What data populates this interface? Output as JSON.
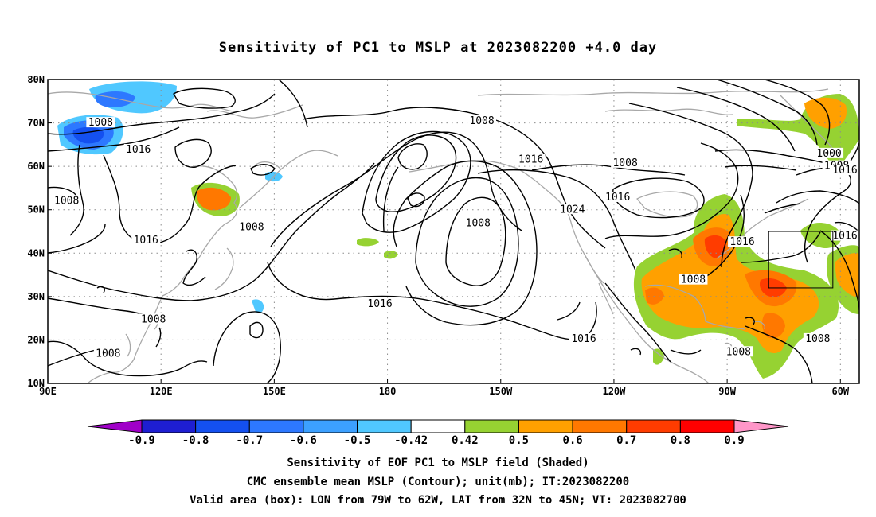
{
  "title": "Sensitivity of PC1 to MSLP at 2023082200 +4.0 day",
  "map": {
    "lon_range": [
      90,
      305
    ],
    "lat_range": [
      10,
      80
    ],
    "x_ticks": [
      {
        "lon": 90,
        "label": "90E"
      },
      {
        "lon": 120,
        "label": "120E"
      },
      {
        "lon": 150,
        "label": "150E"
      },
      {
        "lon": 180,
        "label": "180"
      },
      {
        "lon": 210,
        "label": "150W"
      },
      {
        "lon": 240,
        "label": "120W"
      },
      {
        "lon": 270,
        "label": "90W"
      },
      {
        "lon": 300,
        "label": "60W"
      }
    ],
    "y_ticks": [
      {
        "lat": 80,
        "label": "80N"
      },
      {
        "lat": 70,
        "label": "70N"
      },
      {
        "lat": 60,
        "label": "60N"
      },
      {
        "lat": 50,
        "label": "50N"
      },
      {
        "lat": 40,
        "label": "40N"
      },
      {
        "lat": 30,
        "label": "30N"
      },
      {
        "lat": 20,
        "label": "20N"
      },
      {
        "lat": 10,
        "label": "10N"
      }
    ],
    "contour_labels": [
      {
        "lon": 104,
        "lat": 69.9,
        "label": "1008"
      },
      {
        "lon": 114,
        "lat": 63.7,
        "label": "1016"
      },
      {
        "lon": 95,
        "lat": 51.9,
        "label": "1008"
      },
      {
        "lon": 116,
        "lat": 42.8,
        "label": "1016"
      },
      {
        "lon": 118,
        "lat": 24.6,
        "label": "1008"
      },
      {
        "lon": 106,
        "lat": 16.7,
        "label": "1008"
      },
      {
        "lon": 144,
        "lat": 45.8,
        "label": "1008"
      },
      {
        "lon": 178,
        "lat": 28.1,
        "label": "1016"
      },
      {
        "lon": 205,
        "lat": 70.3,
        "label": "1008"
      },
      {
        "lon": 218,
        "lat": 61.4,
        "label": "1016"
      },
      {
        "lon": 229,
        "lat": 49.9,
        "label": "1024"
      },
      {
        "lon": 204,
        "lat": 46.7,
        "label": "1008"
      },
      {
        "lon": 232,
        "lat": 20.1,
        "label": "1016"
      },
      {
        "lon": 243,
        "lat": 60.6,
        "label": "1008"
      },
      {
        "lon": 241,
        "lat": 52.7,
        "label": "1016"
      },
      {
        "lon": 261,
        "lat": 33.7,
        "label": "1008"
      },
      {
        "lon": 274,
        "lat": 42.4,
        "label": "1016"
      },
      {
        "lon": 297,
        "lat": 62.8,
        "label": "1000"
      },
      {
        "lon": 299,
        "lat": 59.9,
        "label": "1008"
      },
      {
        "lon": 306,
        "lat": 58.9,
        "label": "1016"
      },
      {
        "lon": 308,
        "lat": 43.8,
        "label": "1016"
      },
      {
        "lon": 294,
        "lat": 20.1,
        "label": "1008"
      },
      {
        "lon": 273,
        "lat": 17.1,
        "label": "1008"
      }
    ],
    "valid_box": {
      "lon_min": 281,
      "lon_max": 298,
      "lat_min": 32,
      "lat_max": 45
    }
  },
  "colorbar": {
    "labels": [
      "-0.9",
      "-0.8",
      "-0.7",
      "-0.6",
      "-0.5",
      "-0.42",
      "0.42",
      "0.5",
      "0.6",
      "0.7",
      "0.8",
      "0.9"
    ],
    "colors": [
      "#a000c8",
      "#1e1ed2",
      "#1450f0",
      "#2d78ff",
      "#3ca0ff",
      "#50c8ff",
      "#ffffff",
      "#96d232",
      "#ffa000",
      "#ff7800",
      "#ff3c00",
      "#ff0000",
      "#ff96c8"
    ]
  },
  "caption": {
    "line1": "Sensitivity of EOF PC1 to MSLP field (Shaded)",
    "line2": "CMC ensemble mean MSLP (Contour); unit(mb); IT:2023082200",
    "line3": "Valid area (box): LON from 79W to 62W, LAT from 32N to 45N; VT: 2023082700"
  }
}
